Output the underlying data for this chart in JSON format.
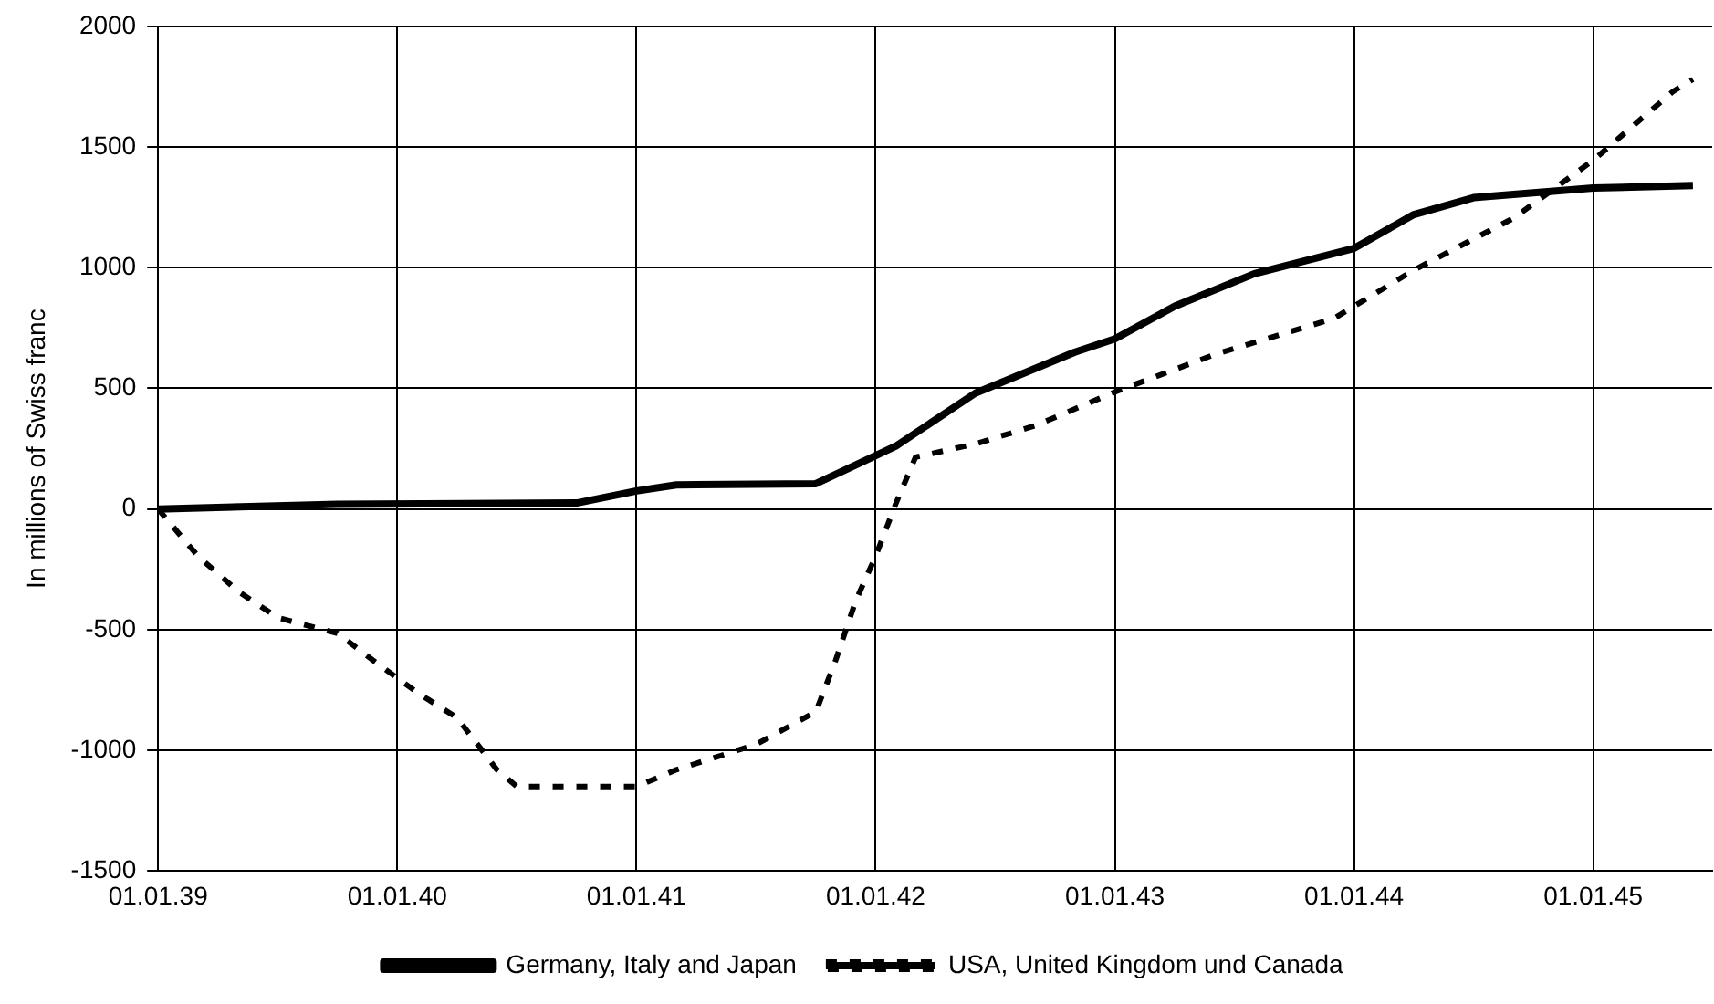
{
  "chart_data": {
    "type": "line",
    "ylabel": "In millions of Swiss franc",
    "xlim": [
      "1939-01-01",
      "1945-06-30"
    ],
    "xticks": [
      {
        "value": "1939-01-01",
        "label": "01.01.39"
      },
      {
        "value": "1940-01-01",
        "label": "01.01.40"
      },
      {
        "value": "1941-01-01",
        "label": "01.01.41"
      },
      {
        "value": "1942-01-01",
        "label": "01.01.42"
      },
      {
        "value": "1943-01-01",
        "label": "01.01.43"
      },
      {
        "value": "1944-01-01",
        "label": "01.01.44"
      },
      {
        "value": "1945-01-01",
        "label": "01.01.45"
      }
    ],
    "ylim": [
      -1500,
      2000
    ],
    "yticks": [
      -1500,
      -1000,
      -500,
      0,
      500,
      1000,
      1500,
      2000
    ],
    "grid": true,
    "legend": "bottom",
    "marker": "none",
    "series": [
      {
        "name": "Germany, Italy and Japan",
        "color": "#000000",
        "line_style": "solid",
        "x": [
          "1939-01",
          "1939-10",
          "1940-10",
          "1941-01",
          "1941-03",
          "1941-10",
          "1942-02",
          "1942-06",
          "1942-11",
          "1943-01",
          "1943-04",
          "1943-08",
          "1944-01",
          "1944-04",
          "1944-07",
          "1944-10",
          "1945-01",
          "1945-06"
        ],
        "values": [
          0,
          20,
          25,
          75,
          100,
          105,
          260,
          480,
          650,
          705,
          840,
          975,
          1080,
          1220,
          1290,
          1310,
          1330,
          1340
        ]
      },
      {
        "name": "USA, United Kingdom und Canada",
        "color": "#000000",
        "line_style": "dashed",
        "x": [
          "1939-01",
          "1939-03",
          "1939-05",
          "1939-07",
          "1939-10",
          "1939-12",
          "1940-02",
          "1940-04",
          "1940-06",
          "1940-07",
          "1941-01",
          "1941-03",
          "1941-07",
          "1941-10",
          "1941-11",
          "1941-12",
          "1942-01",
          "1942-02",
          "1942-03",
          "1942-06",
          "1942-09",
          "1943-01",
          "1943-06",
          "1943-12",
          "1944-04",
          "1944-09",
          "1945-01",
          "1945-05",
          "1945-06"
        ],
        "values": [
          0,
          -195,
          -340,
          -450,
          -515,
          -640,
          -760,
          -865,
          -1080,
          -1150,
          -1150,
          -1080,
          -975,
          -840,
          -625,
          -380,
          -195,
          20,
          215,
          270,
          345,
          485,
          640,
          790,
          990,
          1205,
          1445,
          1730,
          1780
        ]
      }
    ]
  }
}
